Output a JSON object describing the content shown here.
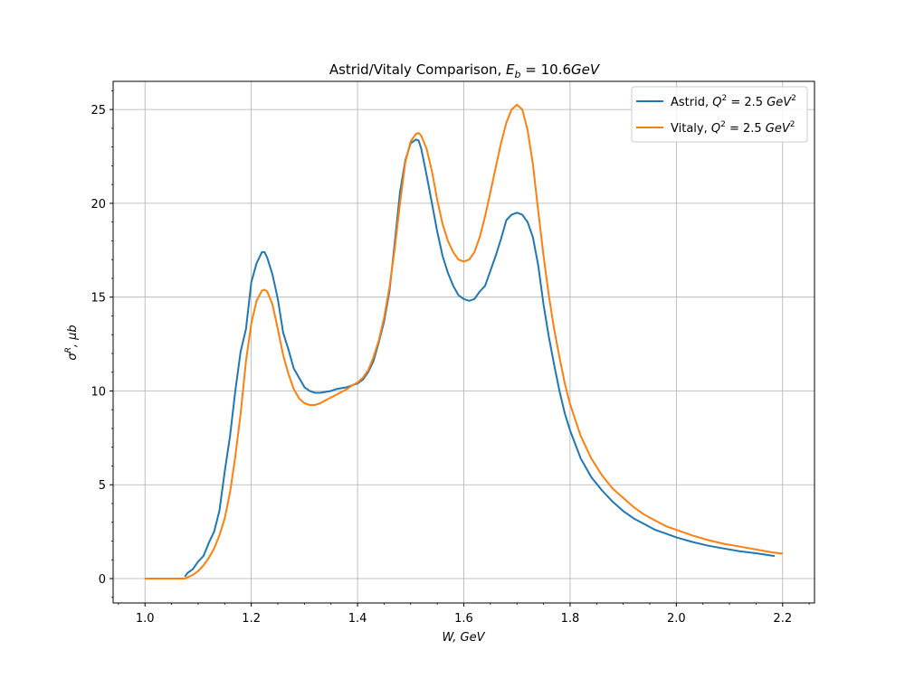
{
  "chart_data": {
    "type": "line",
    "title": "Astrid/Vitaly Comparison, E_b = 10.6GeV",
    "title_parts": {
      "prefix": "Astrid/Vitaly Comparison, ",
      "sym": "E",
      "sub": "b",
      "rest": " = 10.6",
      "unit": "GeV"
    },
    "xlabel": "W, GeV",
    "ylabel": "σ^R, μb",
    "xlim": [
      0.94,
      2.26
    ],
    "ylim": [
      -1.3,
      26.5
    ],
    "x_ticks": [
      1.0,
      1.2,
      1.4,
      1.6,
      1.8,
      2.0,
      2.2
    ],
    "x_tick_labels": [
      "1.0",
      "1.2",
      "1.4",
      "1.6",
      "1.8",
      "2.0",
      "2.2"
    ],
    "y_ticks": [
      0,
      5,
      10,
      15,
      20,
      25
    ],
    "y_tick_labels": [
      "0",
      "5",
      "10",
      "15",
      "20",
      "25"
    ],
    "grid": true,
    "legend_position": "top-right",
    "series": [
      {
        "name": "Astrid, Q^2 = 2.5 GeV^2",
        "legend_parts": {
          "prefix": "Astrid, ",
          "rest": " = 2.5"
        },
        "color": "#1f77b4",
        "x": [
          1.075,
          1.08,
          1.09,
          1.1,
          1.11,
          1.12,
          1.13,
          1.14,
          1.15,
          1.16,
          1.17,
          1.18,
          1.19,
          1.2,
          1.21,
          1.22,
          1.225,
          1.23,
          1.24,
          1.25,
          1.26,
          1.27,
          1.28,
          1.29,
          1.3,
          1.31,
          1.32,
          1.33,
          1.34,
          1.35,
          1.36,
          1.37,
          1.38,
          1.39,
          1.4,
          1.41,
          1.42,
          1.43,
          1.44,
          1.45,
          1.46,
          1.47,
          1.48,
          1.49,
          1.5,
          1.51,
          1.515,
          1.52,
          1.53,
          1.54,
          1.55,
          1.56,
          1.57,
          1.58,
          1.59,
          1.6,
          1.61,
          1.62,
          1.63,
          1.64,
          1.65,
          1.66,
          1.67,
          1.68,
          1.69,
          1.7,
          1.71,
          1.72,
          1.73,
          1.74,
          1.75,
          1.76,
          1.77,
          1.78,
          1.79,
          1.8,
          1.82,
          1.84,
          1.86,
          1.88,
          1.9,
          1.92,
          1.94,
          1.96,
          1.98,
          2.0,
          2.03,
          2.06,
          2.09,
          2.12,
          2.15,
          2.185
        ],
        "y": [
          0.1,
          0.3,
          0.5,
          0.9,
          1.2,
          1.9,
          2.5,
          3.6,
          5.7,
          7.6,
          10.0,
          12.1,
          13.3,
          15.8,
          16.8,
          17.4,
          17.4,
          17.1,
          16.2,
          14.9,
          13.1,
          12.2,
          11.2,
          10.7,
          10.2,
          10.0,
          9.9,
          9.9,
          9.95,
          10.0,
          10.1,
          10.15,
          10.2,
          10.3,
          10.4,
          10.6,
          11.0,
          11.6,
          12.6,
          13.7,
          15.3,
          17.9,
          20.6,
          22.3,
          23.2,
          23.4,
          23.35,
          22.9,
          21.5,
          20.0,
          18.5,
          17.2,
          16.3,
          15.6,
          15.1,
          14.9,
          14.8,
          14.9,
          15.3,
          15.6,
          16.4,
          17.2,
          18.1,
          19.1,
          19.4,
          19.5,
          19.4,
          19.0,
          18.2,
          16.7,
          14.6,
          12.9,
          11.4,
          10.0,
          8.8,
          7.9,
          6.4,
          5.4,
          4.7,
          4.1,
          3.6,
          3.2,
          2.9,
          2.6,
          2.4,
          2.2,
          1.95,
          1.75,
          1.6,
          1.45,
          1.35,
          1.2
        ]
      },
      {
        "name": "Vitaly, Q^2 = 2.5 GeV^2",
        "legend_parts": {
          "prefix": "Vitaly, ",
          "rest": " = 2.5"
        },
        "color": "#ff7f0e",
        "x": [
          1.0,
          1.02,
          1.04,
          1.06,
          1.075,
          1.09,
          1.1,
          1.11,
          1.12,
          1.13,
          1.14,
          1.15,
          1.16,
          1.17,
          1.18,
          1.19,
          1.2,
          1.21,
          1.22,
          1.225,
          1.23,
          1.24,
          1.25,
          1.26,
          1.27,
          1.28,
          1.29,
          1.3,
          1.31,
          1.32,
          1.33,
          1.34,
          1.35,
          1.36,
          1.37,
          1.38,
          1.39,
          1.4,
          1.41,
          1.42,
          1.43,
          1.44,
          1.45,
          1.46,
          1.47,
          1.48,
          1.49,
          1.5,
          1.51,
          1.515,
          1.52,
          1.53,
          1.54,
          1.55,
          1.56,
          1.57,
          1.58,
          1.59,
          1.6,
          1.61,
          1.62,
          1.63,
          1.64,
          1.65,
          1.66,
          1.67,
          1.68,
          1.69,
          1.7,
          1.71,
          1.72,
          1.73,
          1.74,
          1.75,
          1.76,
          1.77,
          1.78,
          1.79,
          1.8,
          1.82,
          1.84,
          1.86,
          1.88,
          1.9,
          1.92,
          1.94,
          1.96,
          1.98,
          2.0,
          2.03,
          2.06,
          2.09,
          2.12,
          2.15,
          2.18,
          2.2
        ],
        "y": [
          0.0,
          0.0,
          0.0,
          0.0,
          0.0,
          0.2,
          0.4,
          0.7,
          1.1,
          1.6,
          2.3,
          3.2,
          4.6,
          6.5,
          8.8,
          11.6,
          13.6,
          14.8,
          15.35,
          15.4,
          15.3,
          14.6,
          13.3,
          11.9,
          10.9,
          10.1,
          9.6,
          9.35,
          9.25,
          9.25,
          9.35,
          9.5,
          9.65,
          9.8,
          9.95,
          10.1,
          10.3,
          10.45,
          10.7,
          11.1,
          11.8,
          12.7,
          13.9,
          15.5,
          17.6,
          20.0,
          22.2,
          23.3,
          23.7,
          23.75,
          23.6,
          22.9,
          21.7,
          20.2,
          18.9,
          18.0,
          17.4,
          17.0,
          16.9,
          17.0,
          17.4,
          18.2,
          19.3,
          20.6,
          21.9,
          23.2,
          24.3,
          25.0,
          25.25,
          25.0,
          23.9,
          22.1,
          19.6,
          17.2,
          15.1,
          13.3,
          11.8,
          10.4,
          9.3,
          7.6,
          6.4,
          5.5,
          4.8,
          4.3,
          3.8,
          3.4,
          3.1,
          2.8,
          2.6,
          2.3,
          2.05,
          1.85,
          1.7,
          1.55,
          1.4,
          1.33
        ]
      }
    ]
  }
}
